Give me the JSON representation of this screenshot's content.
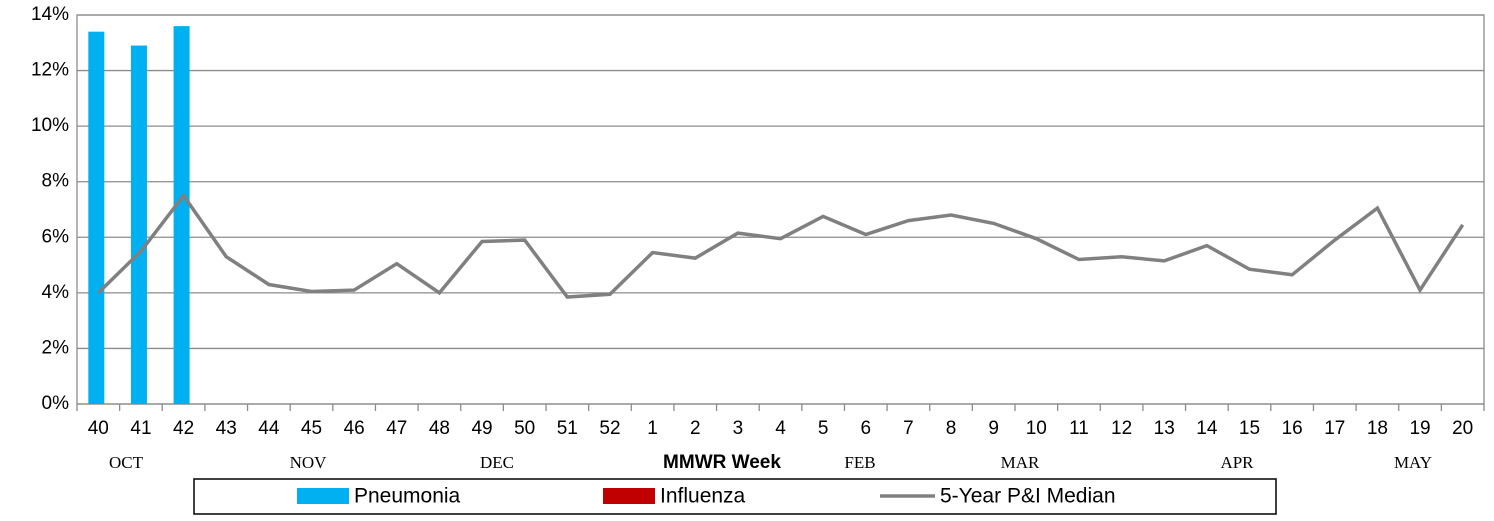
{
  "chart_data": {
    "type": "bar",
    "x_label": "MMWR Week",
    "categories": [
      "40",
      "41",
      "42",
      "43",
      "44",
      "45",
      "46",
      "47",
      "48",
      "49",
      "50",
      "51",
      "52",
      "1",
      "2",
      "3",
      "4",
      "5",
      "6",
      "7",
      "8",
      "9",
      "10",
      "11",
      "12",
      "13",
      "14",
      "15",
      "16",
      "17",
      "18",
      "19",
      "20"
    ],
    "months": [
      "OCT",
      "NOV",
      "DEC",
      "FEB",
      "MAR",
      "APR",
      "MAY"
    ],
    "series": [
      {
        "name": "Pneumonia",
        "type": "bar",
        "color": "#00b0f0",
        "values": [
          13.4,
          12.9,
          13.6,
          null,
          null,
          null,
          null,
          null,
          null,
          null,
          null,
          null,
          null,
          null,
          null,
          null,
          null,
          null,
          null,
          null,
          null,
          null,
          null,
          null,
          null,
          null,
          null,
          null,
          null,
          null,
          null,
          null,
          null
        ]
      },
      {
        "name": "Influenza",
        "type": "bar",
        "color": "#c00000",
        "values": [
          null,
          null,
          null,
          null,
          null,
          null,
          null,
          null,
          null,
          null,
          null,
          null,
          null,
          null,
          null,
          null,
          null,
          null,
          null,
          null,
          null,
          null,
          null,
          null,
          null,
          null,
          null,
          null,
          null,
          null,
          null,
          null,
          null
        ]
      },
      {
        "name": "5-Year P&I Median",
        "type": "line",
        "color": "#808080",
        "values": [
          4.0,
          5.5,
          7.5,
          5.3,
          4.3,
          4.05,
          4.1,
          5.05,
          4.0,
          5.85,
          5.9,
          3.85,
          3.95,
          5.45,
          5.25,
          6.15,
          5.95,
          6.75,
          6.1,
          6.6,
          6.8,
          6.5,
          5.95,
          5.2,
          5.3,
          5.15,
          5.7,
          4.85,
          4.65,
          5.9,
          7.05,
          4.1,
          6.45
        ]
      }
    ],
    "ylim": [
      0,
      14
    ],
    "yticks": [
      {
        "value": 0,
        "label": "0%"
      },
      {
        "value": 2,
        "label": "2%"
      },
      {
        "value": 4,
        "label": "4%"
      },
      {
        "value": 6,
        "label": "6%"
      },
      {
        "value": 8,
        "label": "8%"
      },
      {
        "value": 10,
        "label": "10%"
      },
      {
        "value": 12,
        "label": "12%"
      },
      {
        "value": 14,
        "label": "14%"
      }
    ],
    "grid": true
  }
}
